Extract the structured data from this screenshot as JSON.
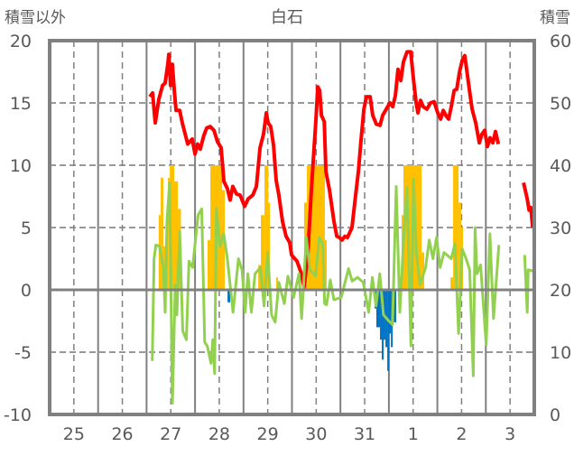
{
  "chart_data": {
    "type": "line",
    "title": "白石",
    "ylabel_left": "積雪以外",
    "ylabel_right": "積雪",
    "ylim_left": [
      -10,
      20
    ],
    "ylim_right": [
      0,
      60
    ],
    "yticks_left": [
      "20",
      "15",
      "10",
      "5",
      "0",
      "-5",
      "-10"
    ],
    "yticks_left_values": [
      20,
      15,
      10,
      5,
      0,
      -5,
      -10
    ],
    "yticks_right": [
      "60",
      "50",
      "40",
      "30",
      "20",
      "10",
      "0"
    ],
    "yticks_right_values": [
      60,
      50,
      40,
      30,
      20,
      10,
      0
    ],
    "x_unit": "hours since day 25 00:00",
    "xlim": [
      0,
      240
    ],
    "xtick_labels": [
      "25",
      "26",
      "27",
      "28",
      "29",
      "30",
      "31",
      "1",
      "2",
      "3"
    ],
    "grid": true,
    "series": [
      {
        "name": "red-line",
        "color": "#ff0000",
        "axis": "left",
        "segments": [
          [
            [
              49.6,
              15.5
            ],
            [
              51,
              15.8
            ],
            [
              52.3,
              13.4
            ],
            [
              54.1,
              15.3
            ],
            [
              55.9,
              16.4
            ],
            [
              57.2,
              16.6
            ],
            [
              58.6,
              18.2
            ],
            [
              59,
              18.9
            ],
            [
              59.9,
              16.4
            ],
            [
              60.8,
              18.1
            ],
            [
              61.7,
              16
            ],
            [
              62.6,
              14.4
            ],
            [
              64.4,
              14.4
            ],
            [
              65.7,
              13.4
            ],
            [
              68.4,
              11.7
            ],
            [
              70.6,
              12.1
            ],
            [
              72,
              10.9
            ],
            [
              73.3,
              11.7
            ],
            [
              74.6,
              11.3
            ],
            [
              76.4,
              12.4
            ],
            [
              77.8,
              13
            ],
            [
              79.6,
              13.1
            ],
            [
              81.4,
              12.8
            ],
            [
              83.1,
              11.9
            ],
            [
              84.9,
              11.4
            ],
            [
              86.3,
              8.7
            ],
            [
              88.1,
              8.1
            ],
            [
              89.4,
              7.2
            ],
            [
              90.7,
              8.3
            ],
            [
              92.5,
              7.7
            ],
            [
              94.3,
              7.6
            ],
            [
              96.6,
              6.7
            ],
            [
              98.3,
              7.3
            ],
            [
              100.6,
              7.6
            ],
            [
              102.4,
              8.3
            ],
            [
              104.2,
              11.4
            ],
            [
              105.9,
              12.5
            ],
            [
              107.3,
              14.2
            ],
            [
              108.2,
              13.4
            ],
            [
              109.5,
              13.1
            ],
            [
              110.9,
              11.6
            ],
            [
              112.2,
              8.8
            ],
            [
              113.5,
              7.6
            ],
            [
              115.3,
              5.5
            ],
            [
              117.1,
              4.3
            ],
            [
              118.9,
              3.8
            ],
            [
              119.8,
              2.8
            ],
            [
              122.5,
              2.3
            ],
            [
              124.7,
              1.3
            ],
            [
              126,
              0.2
            ],
            [
              127.8,
              2.8
            ],
            [
              129.6,
              8
            ],
            [
              131,
              11.5
            ],
            [
              131.9,
              13.7
            ],
            [
              132.8,
              16.3
            ],
            [
              133.7,
              16
            ],
            [
              134.6,
              14
            ],
            [
              136,
              13.5
            ],
            [
              136.8,
              9.5
            ],
            [
              138.6,
              8
            ],
            [
              140.8,
              5.5
            ],
            [
              142.2,
              4.3
            ],
            [
              143.5,
              4.2
            ],
            [
              144.8,
              4
            ],
            [
              146.2,
              4.3
            ],
            [
              147.5,
              4.2
            ],
            [
              149.7,
              5
            ],
            [
              151.1,
              7
            ],
            [
              152.9,
              9.5
            ],
            [
              154.2,
              12
            ],
            [
              155.6,
              14.5
            ],
            [
              156.9,
              15.5
            ],
            [
              158.7,
              15.5
            ],
            [
              160,
              14
            ],
            [
              161.8,
              13.3
            ],
            [
              163.6,
              13.2
            ],
            [
              164.9,
              14
            ],
            [
              166.7,
              14.5
            ],
            [
              168.5,
              15
            ],
            [
              169.9,
              14.7
            ],
            [
              171.2,
              15.6
            ],
            [
              172.5,
              17.7
            ],
            [
              173.9,
              16.8
            ],
            [
              175.2,
              18.3
            ],
            [
              177,
              19.1
            ],
            [
              178.8,
              19.1
            ],
            [
              180.1,
              17
            ],
            [
              181.5,
              15
            ],
            [
              182.4,
              14.2
            ],
            [
              183.7,
              15.2
            ],
            [
              185,
              14.7
            ],
            [
              186.8,
              14.5
            ],
            [
              188.6,
              15
            ],
            [
              190.4,
              15.1
            ],
            [
              192.2,
              14.2
            ],
            [
              193.6,
              13.7
            ],
            [
              194.9,
              14.4
            ],
            [
              196.2,
              14
            ],
            [
              197.6,
              13.7
            ],
            [
              199,
              14.8
            ],
            [
              200.3,
              16
            ],
            [
              201.6,
              16.1
            ],
            [
              203,
              17.5
            ],
            [
              204.3,
              18.4
            ],
            [
              205.6,
              18.8
            ],
            [
              207.9,
              16
            ],
            [
              209.2,
              14.5
            ],
            [
              211,
              13.4
            ],
            [
              212.8,
              11.8
            ],
            [
              214.1,
              12.5
            ],
            [
              215.4,
              12.8
            ],
            [
              216.8,
              11.5
            ],
            [
              218.1,
              12.2
            ],
            [
              219.5,
              11.8
            ],
            [
              220.8,
              12.7
            ],
            [
              222.2,
              11.7
            ]
          ],
          [
            [
              234.7,
              8.6
            ],
            [
              236.5,
              7.3
            ],
            [
              237.4,
              6.4
            ],
            [
              238.3,
              6.6
            ],
            [
              239.2,
              5
            ]
          ]
        ]
      },
      {
        "name": "green-line",
        "color": "#92d050",
        "axis": "left",
        "segments": [
          [
            [
              50.8,
              -5.7
            ],
            [
              51.7,
              2.5
            ],
            [
              52.6,
              3.6
            ],
            [
              54.4,
              3.5
            ],
            [
              56.3,
              1.8
            ],
            [
              57.2,
              -1.8
            ],
            [
              58.1,
              5.5
            ],
            [
              59.4,
              8.6
            ],
            [
              60.8,
              -9.1
            ],
            [
              62.2,
              0.4
            ],
            [
              63,
              -2
            ],
            [
              64.4,
              4.7
            ],
            [
              65.9,
              -3.3
            ],
            [
              67.7,
              -4
            ],
            [
              69,
              2.3
            ],
            [
              70.8,
              1.8
            ],
            [
              73.5,
              6
            ],
            [
              75.3,
              6.5
            ],
            [
              76.8,
              -4.2
            ],
            [
              78.1,
              -4.5
            ],
            [
              79.9,
              -5.9
            ],
            [
              80.8,
              -4
            ],
            [
              81.7,
              -6.7
            ],
            [
              82.6,
              6.5
            ],
            [
              84.4,
              3.5
            ],
            [
              86.2,
              4.5
            ],
            [
              88,
              2.5
            ],
            [
              90.8,
              -1.8
            ],
            [
              93.5,
              2.5
            ],
            [
              95.3,
              1.6
            ],
            [
              96.8,
              -1.8
            ],
            [
              98.2,
              1.3
            ],
            [
              99.9,
              -1.8
            ],
            [
              101.7,
              1.3
            ],
            [
              104.4,
              1.8
            ],
            [
              106.2,
              -1.3
            ],
            [
              108,
              3
            ],
            [
              109.9,
              -2
            ],
            [
              111.7,
              -2.6
            ],
            [
              113.5,
              0.6
            ],
            [
              116.2,
              -1.1
            ],
            [
              118,
              1.1
            ],
            [
              120.8,
              -0.6
            ],
            [
              123.5,
              1.3
            ],
            [
              124.8,
              -2.3
            ],
            [
              127.1,
              4.2
            ],
            [
              128.9,
              1.6
            ],
            [
              131.7,
              1.1
            ],
            [
              133.5,
              4.2
            ],
            [
              135.3,
              3.7
            ],
            [
              136.2,
              -1.1
            ],
            [
              137.1,
              -1.2
            ],
            [
              139,
              0.8
            ],
            [
              140.8,
              -0.8
            ],
            [
              144.4,
              -0.6
            ],
            [
              148,
              1.7
            ],
            [
              149.8,
              0.7
            ],
            [
              152.5,
              1
            ],
            [
              155.3,
              0.6
            ],
            [
              158,
              -1.8
            ],
            [
              159.8,
              1
            ],
            [
              161.6,
              -1.3
            ],
            [
              163.5,
              1.3
            ],
            [
              165.3,
              -2
            ],
            [
              168,
              -2.5
            ],
            [
              169.8,
              -2.8
            ],
            [
              171.6,
              8.3
            ],
            [
              173.4,
              -1.8
            ],
            [
              175.3,
              4
            ],
            [
              177,
              8.2
            ],
            [
              178.9,
              -4.5
            ],
            [
              180.2,
              8.9
            ],
            [
              181.6,
              3
            ],
            [
              183.4,
              0.4
            ],
            [
              186.2,
              1.8
            ],
            [
              188,
              4
            ],
            [
              189.8,
              2.5
            ],
            [
              191.6,
              4.2
            ],
            [
              193.4,
              1.8
            ],
            [
              195.3,
              3
            ],
            [
              198.9,
              2.5
            ],
            [
              200.7,
              3.7
            ],
            [
              202.5,
              -3.5
            ],
            [
              204.3,
              3.3
            ],
            [
              206.2,
              2.5
            ],
            [
              208,
              1.6
            ],
            [
              209.8,
              -6.9
            ],
            [
              210.7,
              5
            ],
            [
              211.6,
              1.3
            ],
            [
              213.4,
              2
            ],
            [
              216.2,
              -4.4
            ],
            [
              218,
              4.5
            ],
            [
              219.8,
              -2.3
            ],
            [
              222.5,
              3.6
            ]
          ],
          [
            [
              235.2,
              2.8
            ],
            [
              236.5,
              -1.8
            ],
            [
              237,
              1.6
            ],
            [
              239.8,
              1.5
            ]
          ]
        ]
      },
      {
        "name": "purple-line",
        "color": "#7030a0",
        "axis": "right",
        "segments": [
          [
            [
              155.5,
              0
            ],
            [
              222.5,
              0
            ]
          ],
          [
            [
              234.5,
              0
            ],
            [
              240,
              0
            ]
          ]
        ]
      }
    ],
    "bars": [
      {
        "name": "yellow-bars",
        "color": "#ffc000",
        "axis": "left",
        "values": [
          [
            54,
            55,
            6
          ],
          [
            55,
            56.3,
            9
          ],
          [
            56.3,
            58.6,
            3.5
          ],
          [
            58.6,
            59.5,
            9
          ],
          [
            59.5,
            61.7,
            10
          ],
          [
            61.7,
            63.5,
            8.7
          ],
          [
            63.5,
            65,
            6.5
          ],
          [
            78.2,
            79.6,
            4
          ],
          [
            79.6,
            85.4,
            10
          ],
          [
            85.4,
            86.7,
            8
          ],
          [
            103.3,
            104.6,
            2
          ],
          [
            104.6,
            106.4,
            6
          ],
          [
            106.4,
            108.2,
            10
          ],
          [
            108.2,
            109.1,
            7
          ],
          [
            112.2,
            113.1,
            1
          ],
          [
            126,
            127.4,
            7
          ],
          [
            127.4,
            136.3,
            10
          ],
          [
            136.3,
            137.2,
            4
          ],
          [
            174.3,
            175.2,
            6
          ],
          [
            175.2,
            184.2,
            10
          ],
          [
            184.2,
            185.5,
            3
          ],
          [
            198.5,
            199.8,
            1
          ],
          [
            199.8,
            202.5,
            10
          ],
          [
            202.5,
            203.8,
            7
          ],
          [
            203.8,
            204.7,
            5
          ]
        ]
      },
      {
        "name": "blue-bars",
        "color": "#0070c0",
        "axis": "left",
        "values": [
          [
            88.1,
            89.4,
            -1
          ],
          [
            160.9,
            161.8,
            -1.5
          ],
          [
            161.8,
            163.6,
            -3
          ],
          [
            163.6,
            164.5,
            -4
          ],
          [
            164.5,
            165.4,
            -5.6
          ],
          [
            165.4,
            166.3,
            -4
          ],
          [
            166.3,
            167.2,
            -4.6
          ],
          [
            167.2,
            168.1,
            -6.5
          ],
          [
            168.1,
            169,
            -3.5
          ],
          [
            169,
            169.9,
            -4.6
          ],
          [
            169.9,
            171.6,
            -2.6
          ]
        ]
      }
    ]
  }
}
